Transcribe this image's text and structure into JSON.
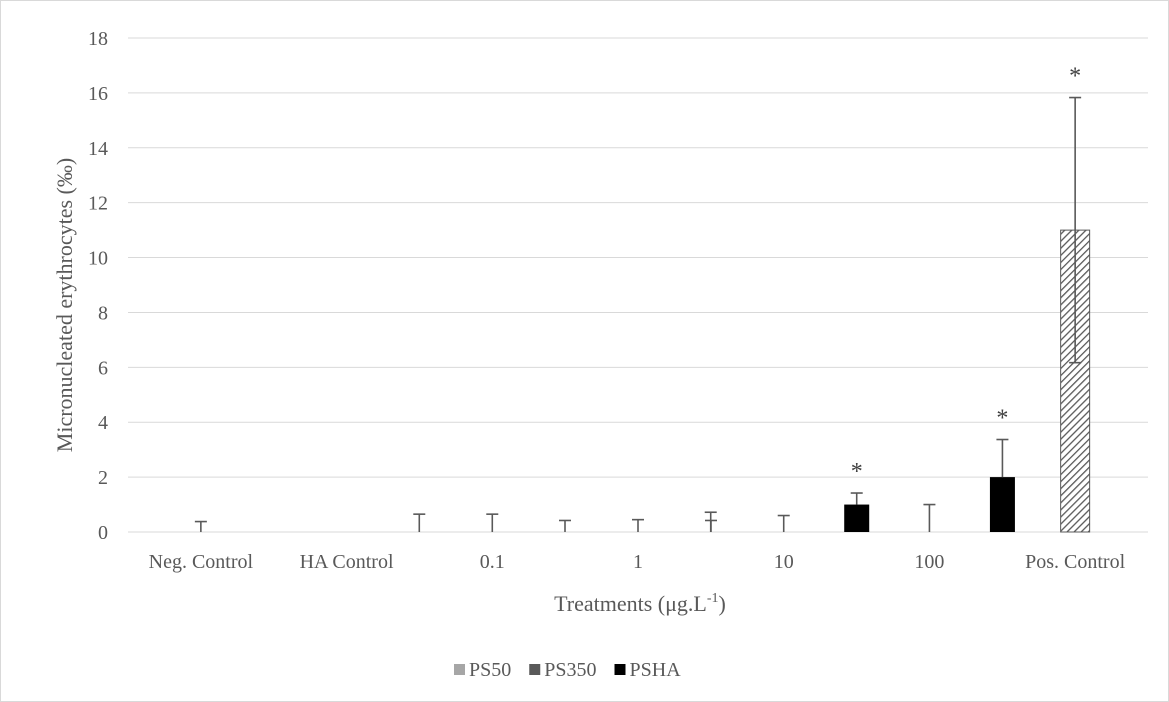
{
  "chart_data": {
    "type": "bar",
    "categories": [
      "Neg. Control",
      "HA Control",
      "0.1",
      "1",
      "10",
      "100",
      "Pos. Control"
    ],
    "ylabel": "Micronucleated erythrocytes (‰)",
    "xlabel": "Treatments (μg.L",
    "xlabel_superscript": "-1",
    "xlabel_suffix": ")",
    "ylim": [
      0,
      18
    ],
    "yticks": [
      0,
      2,
      4,
      6,
      8,
      10,
      12,
      14,
      16,
      18
    ],
    "grid": true,
    "legend_position": "bottom",
    "series": [
      {
        "name": "PS50",
        "color": "#a6a6a6",
        "values": [
          null,
          null,
          0,
          0,
          0,
          0,
          null
        ],
        "errors": [
          null,
          null,
          0.65,
          0.42,
          0.72,
          0.5,
          null
        ]
      },
      {
        "name": "PS350",
        "color": "#595959",
        "values": [
          null,
          null,
          0,
          0,
          0,
          0,
          null
        ],
        "errors": [
          null,
          null,
          0.65,
          0.45,
          0.6,
          1.0,
          null
        ]
      },
      {
        "name": "PSHA",
        "color": "#000000",
        "values": [
          null,
          null,
          null,
          0,
          1.0,
          2.0,
          null
        ],
        "errors": [
          null,
          null,
          null,
          0.42,
          0.42,
          1.37,
          null
        ]
      }
    ],
    "controls": [
      {
        "category": "Neg. Control",
        "value": 0,
        "error": 0.38
      },
      {
        "category": "HA Control",
        "value": 0,
        "error": null
      },
      {
        "category": "Pos. Control",
        "value": 11.0,
        "error": 4.83
      }
    ],
    "annotations": [
      {
        "category": "10",
        "series": "PSHA",
        "text": "*"
      },
      {
        "category": "100",
        "series": "PSHA",
        "text": "*"
      },
      {
        "category": "Pos. Control",
        "series": "control",
        "text": "*"
      }
    ]
  }
}
